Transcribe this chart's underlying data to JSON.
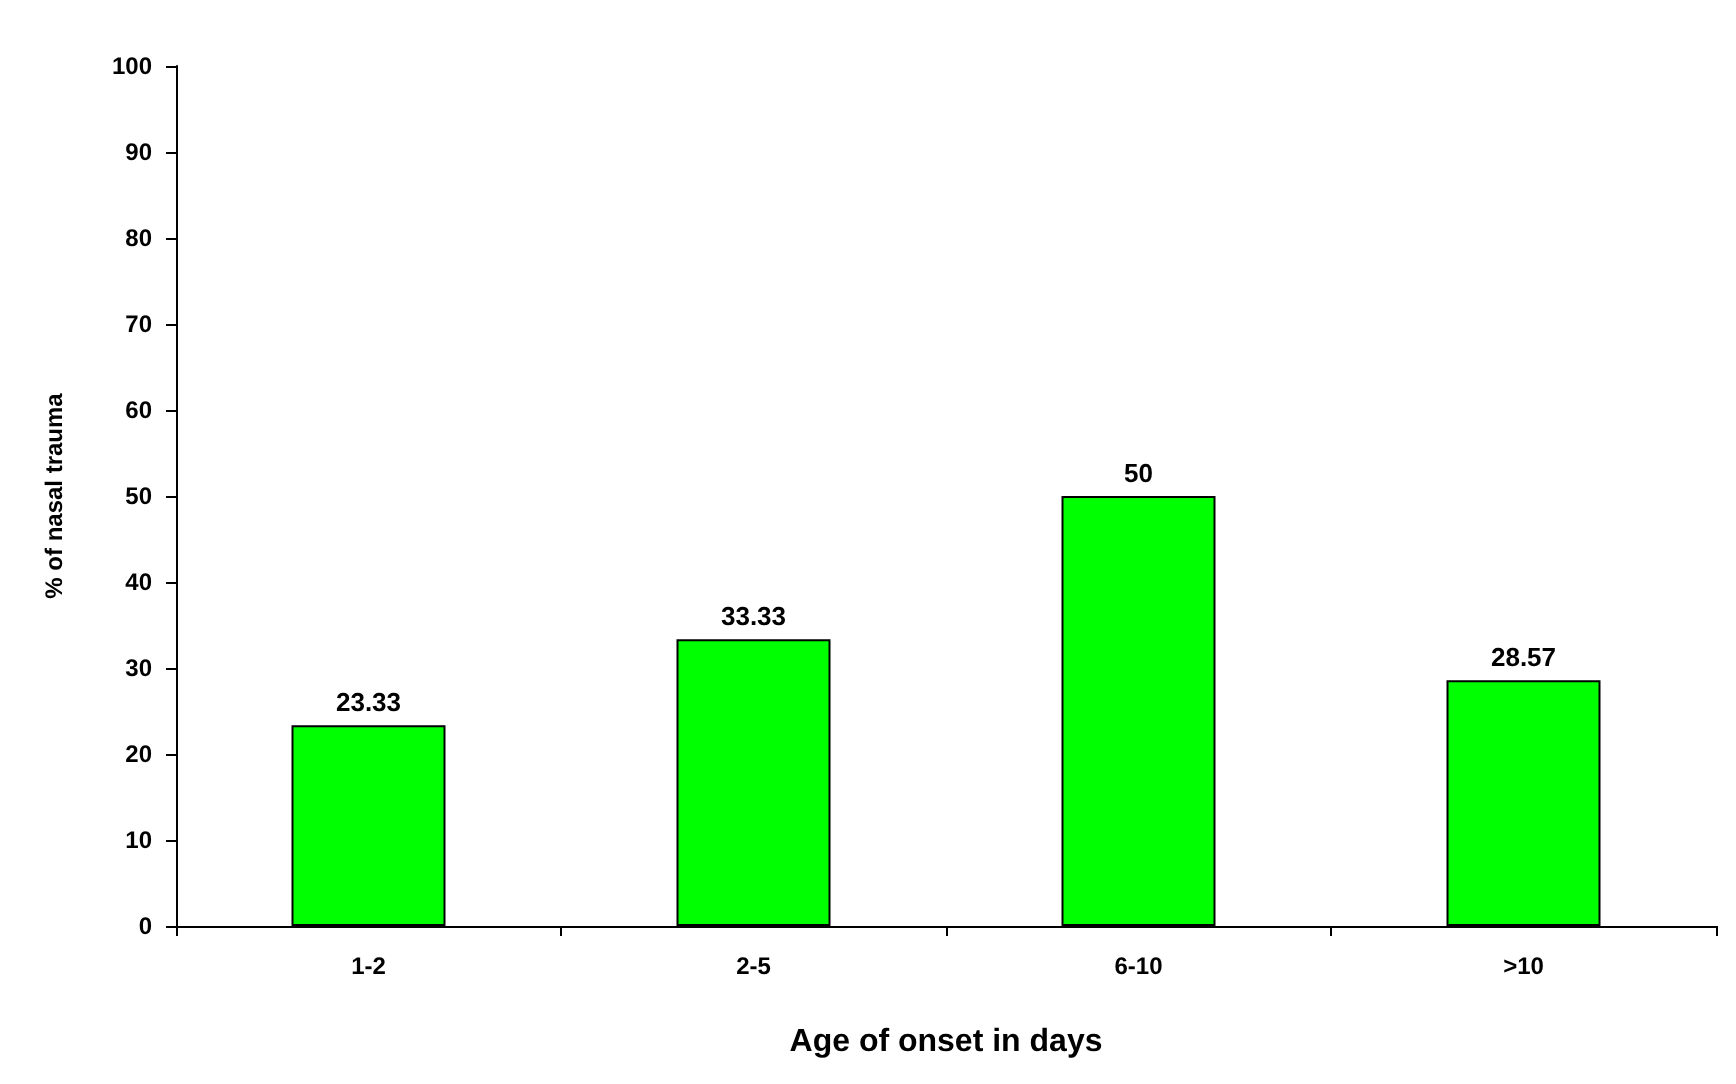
{
  "chart_data": {
    "type": "bar",
    "xlabel": "Age of onset in days",
    "ylabel": "% of nasal trauma",
    "categories": [
      "1-2",
      "2-5",
      "6-10",
      ">10"
    ],
    "values": [
      23.33,
      33.33,
      50,
      28.57
    ],
    "color": "#00ff00",
    "ylim": [
      0,
      100
    ],
    "yticks": [
      0,
      10,
      20,
      30,
      40,
      50,
      60,
      70,
      80,
      90,
      100
    ],
    "grid": false,
    "data_labels": true
  }
}
